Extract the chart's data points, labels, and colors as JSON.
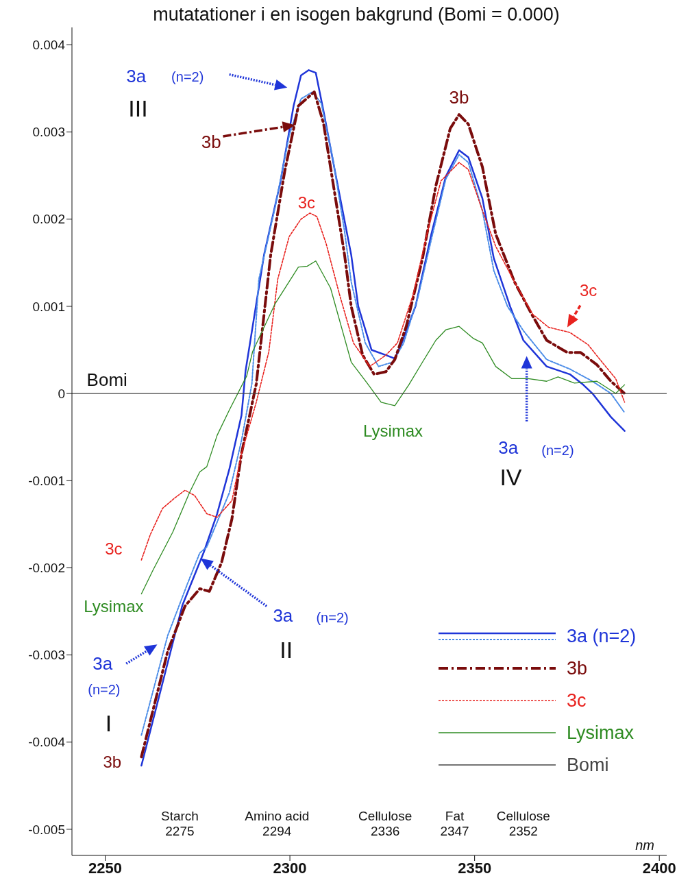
{
  "chart_data": {
    "type": "line",
    "title": "mutatationer i en isogen bakgrund (Bomi = 0.000)",
    "xlabel": "nm",
    "xlim": [
      2241,
      2402
    ],
    "xticks": [
      2250,
      2300,
      2350,
      2400
    ],
    "ylim": [
      -0.0053,
      0.0042
    ],
    "yticks": [
      -0.005,
      -0.004,
      -0.003,
      -0.002,
      -0.001,
      0,
      0.001,
      0.002,
      0.003,
      0.004
    ],
    "legend": "bottom right",
    "marker": "none",
    "series": [
      {
        "name": "3a (n=2)",
        "color": "#1f35d8",
        "line_style": "solid",
        "x": [
          2259.8,
          2270.9,
          2276.7,
          2280.3,
          2283.6,
          2286.9,
          2288.0,
          2293.0,
          2297.4,
          2301.0,
          2303.0,
          2305.1,
          2307.0,
          2309.1,
          2312.2,
          2316.6,
          2318.5,
          2322.1,
          2326.0,
          2328.4,
          2330.3,
          2334.0,
          2338.3,
          2342.2,
          2345.8,
          2348.3,
          2352.1,
          2355.2,
          2359.6,
          2363.2,
          2369.5,
          2375.8,
          2379.4,
          2381.9,
          2386.9,
          2390.6
        ],
        "values": [
          -0.00427,
          -0.00243,
          -0.00182,
          -0.00138,
          -0.00087,
          -0.00025,
          0.00026,
          0.00159,
          0.00242,
          0.0033,
          0.00365,
          0.00371,
          0.00368,
          0.00324,
          0.00255,
          0.00159,
          0.001,
          0.0005,
          0.00044,
          0.0004,
          0.00058,
          0.001,
          0.00183,
          0.00249,
          0.00279,
          0.00271,
          0.00224,
          0.00155,
          0.001,
          0.00061,
          0.00031,
          0.00022,
          0.0001,
          0,
          -0.00027,
          -0.00043
        ]
      },
      {
        "color": "#4a8ce8",
        "line_style": "dotted",
        "x": [
          2259.8,
          2266.9,
          2272.3,
          2275.6,
          2277.5,
          2283.6,
          2286.9,
          2289.7,
          2291.6,
          2296.0,
          2299.8,
          2303.0,
          2306.1,
          2308.5,
          2311.7,
          2314.8,
          2316.6,
          2320.4,
          2324.0,
          2327.9,
          2330.8,
          2334.7,
          2338.3,
          2342.2,
          2345.8,
          2348.3,
          2352.1,
          2355.2,
          2358.9,
          2363.2,
          2369.5,
          2375.8,
          2381.9,
          2386.9,
          2390.6
        ],
        "values": [
          -0.00392,
          -0.00278,
          -0.00218,
          -0.00183,
          -0.00176,
          -0.00114,
          -0.00054,
          0.00011,
          0.00131,
          0.00214,
          0.00296,
          0.00338,
          0.00346,
          0.00333,
          0.00268,
          0.00186,
          0.00128,
          0.00058,
          0.00031,
          0.00036,
          0.00058,
          0.00111,
          0.00177,
          0.00246,
          0.00274,
          0.00265,
          0.0021,
          0.00141,
          0.001,
          0.00072,
          0.00039,
          0.00028,
          0.00014,
          0,
          -0.00022
        ]
      },
      {
        "name": "3b",
        "color": "#7a0c0c",
        "line_style": "dashed",
        "x": [
          2259.8,
          2266.9,
          2271.6,
          2275.6,
          2278.2,
          2281.5,
          2284.3,
          2286.9,
          2290.9,
          2294.8,
          2298.6,
          2302.3,
          2306.6,
          2309.1,
          2311.7,
          2314.8,
          2316.6,
          2319.7,
          2322.8,
          2326.0,
          2328.4,
          2331.5,
          2335.9,
          2339.5,
          2343.4,
          2345.8,
          2348.3,
          2352.1,
          2355.7,
          2360.8,
          2365.7,
          2369.5,
          2375.1,
          2378.7,
          2383.1,
          2386.9,
          2390.6
        ],
        "values": [
          -0.00417,
          -0.00296,
          -0.00244,
          -0.00224,
          -0.00227,
          -0.00194,
          -0.00144,
          -0.00069,
          0.00011,
          0.00159,
          0.00255,
          0.0033,
          0.00346,
          0.0031,
          0.00241,
          0.00159,
          0.001,
          0.00044,
          0.00022,
          0.00025,
          0.00039,
          0.00077,
          0.00155,
          0.00238,
          0.00304,
          0.0032,
          0.00309,
          0.0026,
          0.00183,
          0.00128,
          0.00089,
          0.00061,
          0.00047,
          0.00047,
          0.00033,
          0.00014,
          0
        ]
      },
      {
        "name": "3c",
        "color": "#e8221e",
        "line_style": "dotted",
        "x": [
          2259.8,
          2262.2,
          2265.5,
          2268.8,
          2271.6,
          2274.2,
          2277.5,
          2280.3,
          2284.3,
          2286.9,
          2290.9,
          2294.3,
          2296.7,
          2299.8,
          2303.0,
          2305.4,
          2307.3,
          2309.8,
          2313.4,
          2317.2,
          2321.6,
          2326.0,
          2329.1,
          2333.4,
          2337.1,
          2340.9,
          2345.8,
          2348.3,
          2352.1,
          2355.7,
          2360.8,
          2365.7,
          2370.0,
          2375.8,
          2380.7,
          2384.5,
          2388.2,
          2390.6
        ],
        "values": [
          -0.00191,
          -0.00162,
          -0.00132,
          -0.0012,
          -0.00111,
          -0.00117,
          -0.00138,
          -0.00142,
          -0.00123,
          -0.00069,
          -0.0001,
          0.00048,
          0.00131,
          0.0018,
          0.002,
          0.00207,
          0.00203,
          0.00172,
          0.00114,
          0.00058,
          0.00031,
          0.00044,
          0.00058,
          0.00114,
          0.00183,
          0.00244,
          0.00265,
          0.00257,
          0.0021,
          0.00169,
          0.00128,
          0.00091,
          0.00076,
          0.0007,
          0.00056,
          0.00036,
          0.00017,
          -0.0001
        ]
      },
      {
        "name": "Lysimax",
        "color": "#2e8b22",
        "line_style": "solid",
        "x": [
          2259.8,
          2262.9,
          2268.3,
          2272.8,
          2275.6,
          2277.5,
          2280.3,
          2283.6,
          2288.3,
          2289.9,
          2296.0,
          2302.3,
          2304.7,
          2307.0,
          2311.0,
          2316.6,
          2320.9,
          2324.7,
          2328.4,
          2332.2,
          2335.9,
          2339.5,
          2342.2,
          2345.8,
          2349.7,
          2352.1,
          2355.7,
          2360.1,
          2364.5,
          2369.5,
          2372.6,
          2377.0,
          2383.1,
          2388.2,
          2390.6
        ],
        "values": [
          -0.0023,
          -0.00203,
          -0.00159,
          -0.00114,
          -0.0009,
          -0.00084,
          -0.00048,
          -0.00019,
          0.0002,
          0.00048,
          0.00103,
          0.00145,
          0.00146,
          0.00152,
          0.00121,
          0.00036,
          0.00012,
          -0.0001,
          -0.00014,
          0.0001,
          0.00036,
          0.00061,
          0.00073,
          0.00077,
          0.00063,
          0.00058,
          0.00031,
          0.00017,
          0.00017,
          0.00014,
          0.00019,
          0.00012,
          0.00014,
          0,
          0.0001
        ]
      },
      {
        "name": "Bomi",
        "color": "#444444",
        "line_style": "solid",
        "x": [
          2241,
          2402
        ],
        "values": [
          0,
          0
        ]
      }
    ],
    "annotations": [
      "3a",
      "(n=2)",
      "III",
      "3b",
      "3c",
      "3b",
      "3c",
      "Bomi",
      "Lysimax",
      "3a",
      "(n=2)",
      "IV",
      "3c",
      "Lysimax",
      "3a",
      "(n=2)",
      "II",
      "3a",
      "(n=2)",
      "I",
      "3b",
      "Starch\n2275",
      "Amino acid\n2294",
      "Cellulose\n2336",
      "Fat\n2347",
      "Cellulose\n2352"
    ]
  }
}
